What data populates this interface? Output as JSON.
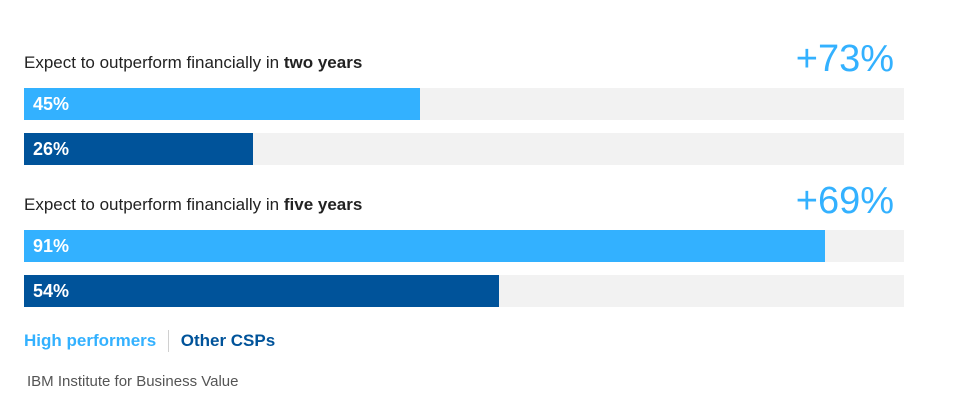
{
  "chart_data": {
    "type": "bar",
    "orientation": "horizontal",
    "xlim": [
      0,
      100
    ],
    "colors": {
      "High performers": "#33b1ff",
      "Other CSPs": "#00539a",
      "track": "#f2f2f2"
    },
    "groups": [
      {
        "label_prefix": "Expect to outperform financially in ",
        "label_bold": "two years",
        "delta": "+73%",
        "values": [
          45,
          26
        ],
        "value_labels": [
          "45%",
          "26%"
        ]
      },
      {
        "label_prefix": "Expect to outperform financially in ",
        "label_bold": "five years",
        "delta": "+69%",
        "values": [
          91,
          54
        ],
        "value_labels": [
          "91%",
          "54%"
        ]
      }
    ],
    "series": [
      {
        "name": "High performers"
      },
      {
        "name": "Other CSPs"
      }
    ]
  },
  "legend": {
    "high": "High performers",
    "other": "Other CSPs"
  },
  "source": "IBM Institute for Business Value"
}
